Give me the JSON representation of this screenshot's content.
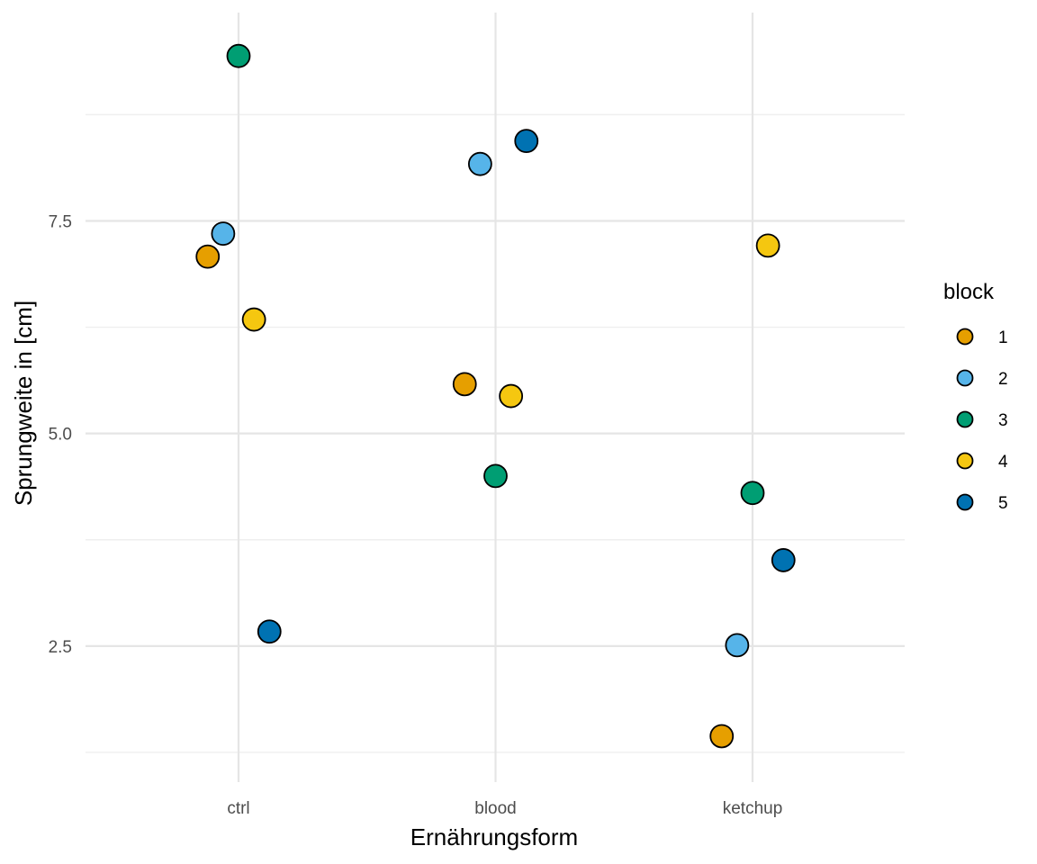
{
  "chart_data": {
    "type": "scatter",
    "xlabel": "Ernährungsform",
    "ylabel": "Sprungweite in [cm]",
    "categories": [
      "ctrl",
      "blood",
      "ketchup"
    ],
    "ylim": [
      0.9,
      9.95
    ],
    "y_ticks": [
      2.5,
      5.0,
      7.5
    ],
    "y_tick_labels": [
      "2.5",
      "5.0",
      "7.5"
    ],
    "y_minor_ticks": [
      1.25,
      3.75,
      6.25,
      8.75
    ],
    "grid": true,
    "legend": {
      "title": "block",
      "position": "right",
      "entries": [
        {
          "label": "1",
          "color": "#E69F00"
        },
        {
          "label": "2",
          "color": "#56B4E9"
        },
        {
          "label": "3",
          "color": "#009E73"
        },
        {
          "label": "4",
          "color": "#F5C710"
        },
        {
          "label": "5",
          "color": "#0072B2"
        }
      ]
    },
    "points": [
      {
        "category": "ctrl",
        "block": "1",
        "x_offset": -0.12,
        "y": 7.08
      },
      {
        "category": "ctrl",
        "block": "2",
        "x_offset": -0.06,
        "y": 7.35
      },
      {
        "category": "ctrl",
        "block": "3",
        "x_offset": 0.0,
        "y": 9.44
      },
      {
        "category": "ctrl",
        "block": "4",
        "x_offset": 0.06,
        "y": 6.34
      },
      {
        "category": "ctrl",
        "block": "5",
        "x_offset": 0.12,
        "y": 2.67
      },
      {
        "category": "blood",
        "block": "1",
        "x_offset": -0.12,
        "y": 5.58
      },
      {
        "category": "blood",
        "block": "2",
        "x_offset": -0.06,
        "y": 8.17
      },
      {
        "category": "blood",
        "block": "3",
        "x_offset": 0.0,
        "y": 4.5
      },
      {
        "category": "blood",
        "block": "4",
        "x_offset": 0.06,
        "y": 5.44
      },
      {
        "category": "blood",
        "block": "5",
        "x_offset": 0.12,
        "y": 8.44
      },
      {
        "category": "ketchup",
        "block": "1",
        "x_offset": -0.12,
        "y": 1.44
      },
      {
        "category": "ketchup",
        "block": "2",
        "x_offset": -0.06,
        "y": 2.51
      },
      {
        "category": "ketchup",
        "block": "3",
        "x_offset": 0.0,
        "y": 4.3
      },
      {
        "category": "ketchup",
        "block": "4",
        "x_offset": 0.06,
        "y": 7.21
      },
      {
        "category": "ketchup",
        "block": "5",
        "x_offset": 0.12,
        "y": 3.51
      }
    ]
  }
}
